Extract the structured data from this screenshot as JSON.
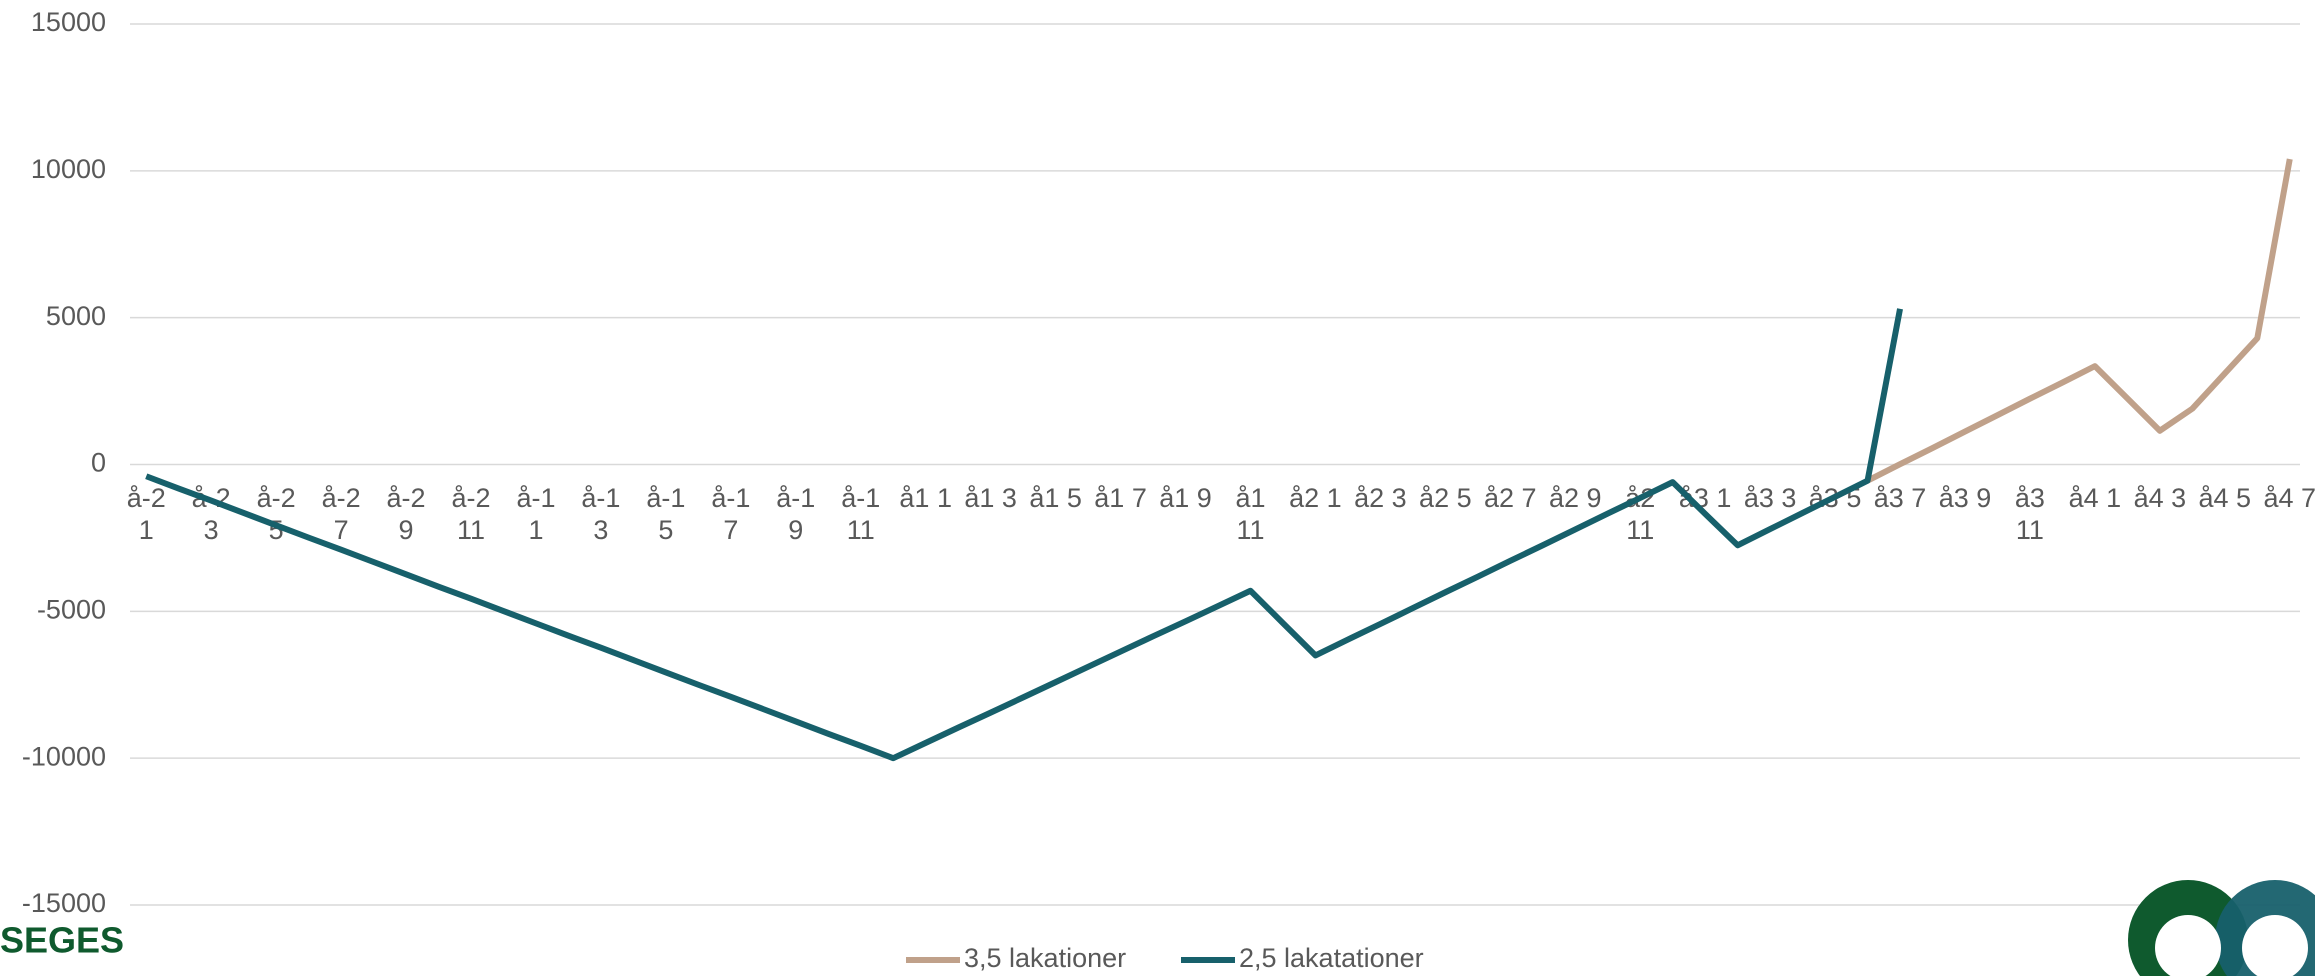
{
  "chart_data": {
    "type": "line",
    "categories": [
      "å-2 1",
      null,
      "å-2 3",
      null,
      "å-2 5",
      null,
      "å-2 7",
      null,
      "å-2 9",
      null,
      "å-2 11",
      null,
      "å-1 1",
      null,
      "å-1 3",
      null,
      "å-1 5",
      null,
      "å-1 7",
      null,
      "å-1 9",
      null,
      "å-1 11",
      null,
      "å1 1",
      null,
      "å1 3",
      null,
      "å1 5",
      null,
      "å1 7",
      null,
      "å1 9",
      null,
      "å1 11",
      null,
      "å2 1",
      null,
      "å2 3",
      null,
      "å2 5",
      null,
      "å2 7",
      null,
      "å2 9",
      null,
      "å2 11",
      null,
      "å3 1",
      null,
      "å3 3",
      null,
      "å3 5",
      null,
      "å3 7",
      null,
      "å3 9",
      null,
      "å3 11",
      null,
      "å4 1",
      null,
      "å4 3",
      null,
      "å4 5",
      null,
      "å4 7"
    ],
    "series": [
      {
        "name": "3,5 lakationer",
        "color": "#c0a18a",
        "values": [
          null,
          null,
          null,
          null,
          null,
          null,
          null,
          null,
          null,
          null,
          null,
          null,
          null,
          null,
          null,
          null,
          null,
          null,
          null,
          null,
          null,
          null,
          null,
          null,
          null,
          null,
          null,
          null,
          null,
          null,
          null,
          null,
          null,
          null,
          null,
          null,
          null,
          null,
          null,
          null,
          null,
          null,
          null,
          null,
          null,
          null,
          null,
          null,
          null,
          null,
          null,
          null,
          null,
          -550,
          10,
          560,
          1120,
          1680,
          2240,
          2790,
          3350,
          2250,
          1150,
          1900,
          3100,
          4300,
          10400
        ]
      },
      {
        "name": "2,5 lakatationer",
        "color": "#17606b",
        "values": [
          -400,
          -820,
          -1230,
          -1650,
          -2070,
          -2490,
          -2900,
          -3320,
          -3740,
          -4160,
          -4570,
          -4990,
          -5410,
          -5830,
          -6240,
          -6660,
          -7080,
          -7500,
          -7910,
          -8330,
          -8750,
          -9170,
          -9580,
          -10000,
          -9480,
          -8960,
          -8450,
          -7930,
          -7410,
          -6890,
          -6370,
          -5850,
          -5340,
          -4820,
          -4300,
          -5400,
          -6500,
          -5960,
          -5430,
          -4890,
          -4350,
          -3820,
          -3280,
          -2750,
          -2210,
          -1670,
          -1140,
          -600,
          -1680,
          -2750,
          -2200,
          -1650,
          -1100,
          -550,
          5300,
          null,
          null,
          null,
          null,
          null,
          null,
          null,
          null,
          null,
          null,
          null,
          null
        ]
      }
    ],
    "ylim": [
      -15000,
      15000
    ],
    "yticks": [
      -15000,
      -10000,
      -5000,
      0,
      5000,
      10000,
      15000
    ],
    "grid": true,
    "legend": "bottom",
    "logo": "SEGES"
  }
}
